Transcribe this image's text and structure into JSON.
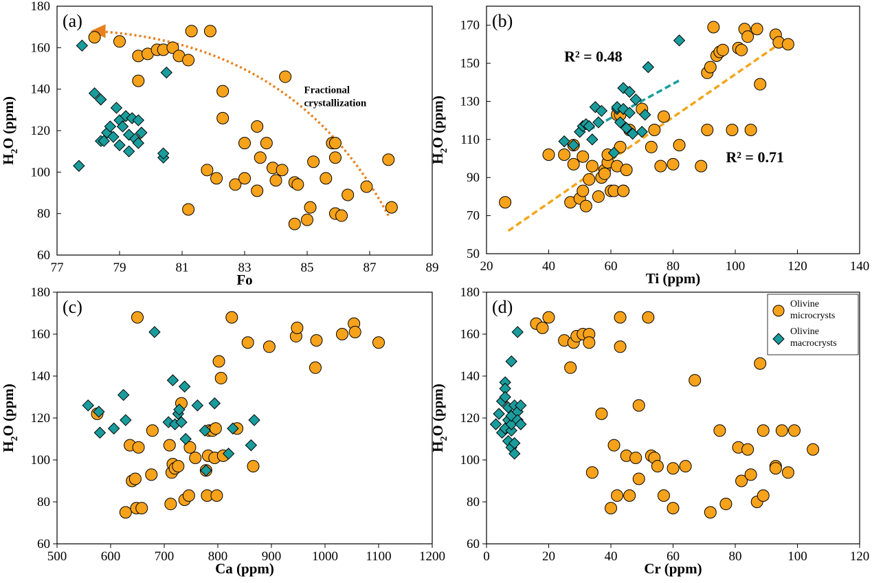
{
  "legend": {
    "micro": [
      "Olivine",
      "microcrysts"
    ],
    "macro": [
      "Olivine",
      "macrocrysts"
    ]
  },
  "colors": {
    "micro_fill": "#F7A21B",
    "macro_fill": "#1A9C9C",
    "arrow": "#E8801E",
    "trend_micro": "#F2A51A",
    "trend_macro": "#1A9C9C"
  },
  "chart_data": [
    {
      "type": "scatter",
      "panel": "(a)",
      "xlabel": "Fo",
      "ylabel_main": "H",
      "ylabel_sub": "2",
      "ylabel_rest": "O (ppm)",
      "xlim": [
        77,
        89
      ],
      "ylim": [
        60,
        180
      ],
      "xticks": [
        77,
        79,
        81,
        83,
        85,
        87,
        89
      ],
      "yticks": [
        60,
        80,
        100,
        120,
        140,
        160,
        180
      ],
      "annotation": [
        "Fractional",
        "crystallization"
      ],
      "arrow": {
        "from": [
          87.6,
          79
        ],
        "via": [
          83.8,
          142
        ],
        "to": [
          78.2,
          168
        ]
      },
      "series": [
        {
          "name": "Olivine microcrysts",
          "marker": "circle",
          "x": [
            78.2,
            79.0,
            79.6,
            79.6,
            79.9,
            80.2,
            80.4,
            80.7,
            80.9,
            81.2,
            81.3,
            81.9,
            82.3,
            82.3,
            82.1,
            81.2,
            81.8,
            82.7,
            83.0,
            83.0,
            83.4,
            83.5,
            83.4,
            83.7,
            83.9,
            84.0,
            84.2,
            84.3,
            84.6,
            84.7,
            84.6,
            85.0,
            85.1,
            85.2,
            85.6,
            85.8,
            85.9,
            85.9,
            85.9,
            86.1,
            86.3,
            86.9,
            87.6,
            87.7
          ],
          "y": [
            165,
            163,
            156,
            144,
            157,
            159,
            159,
            160,
            156,
            154,
            168,
            168,
            139,
            126,
            97,
            82,
            101,
            94,
            114,
            97,
            122,
            107,
            91,
            114,
            102,
            96,
            101,
            146,
            95,
            94,
            75,
            77,
            83,
            105,
            97,
            114,
            114,
            80,
            107,
            79,
            89,
            93,
            106,
            83
          ]
        },
        {
          "name": "Olivine macrocrysts",
          "marker": "diamond",
          "x": [
            77.7,
            77.8,
            78.2,
            78.4,
            78.4,
            78.5,
            78.6,
            78.7,
            78.8,
            78.9,
            79.0,
            79.0,
            79.1,
            79.2,
            79.3,
            79.3,
            79.4,
            79.5,
            79.6,
            79.6,
            79.7,
            80.4,
            80.4,
            80.5
          ],
          "y": [
            103,
            161,
            138,
            115,
            135,
            115,
            119,
            122,
            117,
            131,
            113,
            125,
            122,
            127,
            110,
            118,
            126,
            116,
            125,
            114,
            119,
            107,
            109,
            148
          ]
        }
      ]
    },
    {
      "type": "scatter",
      "panel": "(b)",
      "xlabel": "Ti (ppm)",
      "ylabel_main": "H",
      "ylabel_sub": "2",
      "ylabel_rest": "O (ppm)",
      "xlim": [
        20,
        140
      ],
      "ylim": [
        50,
        180
      ],
      "xticks": [
        20,
        40,
        60,
        80,
        100,
        120,
        140
      ],
      "yticks": [
        50,
        70,
        90,
        110,
        130,
        150,
        170
      ],
      "r2_macro": "R² = 0.48",
      "r2_micro": "R² = 0.71",
      "trendlines": [
        {
          "series": "Olivine microcrysts",
          "from": [
            27,
            62
          ],
          "to": [
            114,
            160
          ]
        },
        {
          "series": "Olivine macrocrysts",
          "from": [
            53,
            115
          ],
          "to": [
            82,
            141
          ]
        }
      ],
      "series": [
        {
          "name": "Olivine microcrysts",
          "marker": "circle",
          "x": [
            26,
            40,
            45,
            47,
            48,
            48,
            50,
            51,
            51,
            52,
            53,
            54,
            56,
            57,
            58,
            58,
            59,
            59,
            60,
            61,
            62,
            62,
            63,
            63,
            64,
            64,
            65,
            66,
            70,
            73,
            74,
            76,
            77,
            80,
            82,
            89,
            91,
            91,
            92,
            93,
            94,
            95,
            96,
            99,
            101,
            102,
            103,
            104,
            105,
            107,
            108,
            113,
            114,
            117
          ],
          "y": [
            77,
            102,
            102,
            77,
            107,
            97,
            79,
            83,
            101,
            75,
            89,
            96,
            80,
            90,
            94,
            92,
            98,
            102,
            83,
            83,
            96,
            123,
            106,
            123,
            83,
            83,
            94,
            115,
            126,
            106,
            115,
            96,
            122,
            97,
            107,
            96,
            115,
            145,
            148,
            169,
            154,
            156,
            157,
            115,
            158,
            157,
            168,
            164,
            115,
            168,
            139,
            165,
            161,
            160
          ]
        },
        {
          "name": "Olivine macrocrysts",
          "marker": "diamond",
          "x": [
            45,
            48,
            50,
            51,
            52,
            53,
            54,
            55,
            56,
            57,
            61,
            62,
            62,
            63,
            64,
            64,
            65,
            66,
            66,
            67,
            68,
            70,
            71,
            72,
            82
          ],
          "y": [
            109,
            107,
            114,
            117,
            118,
            117,
            110,
            127,
            119,
            125,
            103,
            126,
            127,
            119,
            126,
            137,
            116,
            135,
            124,
            113,
            131,
            114,
            123,
            148,
            162
          ]
        }
      ]
    },
    {
      "type": "scatter",
      "panel": "(c)",
      "xlabel": "Ca (ppm)",
      "ylabel_main": "H",
      "ylabel_sub": "2",
      "ylabel_rest": "O (ppm)",
      "xlim": [
        500,
        1200
      ],
      "ylim": [
        60,
        180
      ],
      "xticks": [
        500,
        600,
        700,
        800,
        900,
        1000,
        1100,
        1200
      ],
      "yticks": [
        60,
        80,
        100,
        120,
        140,
        160,
        180
      ],
      "series": [
        {
          "name": "Olivine microcrysts",
          "marker": "circle",
          "x": [
            575,
            628,
            636,
            640,
            646,
            648,
            650,
            652,
            658,
            676,
            678,
            710,
            712,
            714,
            716,
            720,
            726,
            732,
            738,
            746,
            748,
            758,
            778,
            780,
            782,
            784,
            790,
            794,
            796,
            798,
            802,
            806,
            810,
            826,
            836,
            856,
            866,
            896,
            946,
            948,
            982,
            984,
            1032,
            1054,
            1056,
            1100
          ],
          "y": [
            122,
            75,
            107,
            90,
            91,
            77,
            168,
            106,
            77,
            93,
            114,
            107,
            79,
            94,
            98,
            96,
            97,
            127,
            81,
            83,
            106,
            101,
            95,
            83,
            102,
            114,
            114,
            101,
            115,
            83,
            147,
            139,
            102,
            168,
            115,
            156,
            97,
            154,
            159,
            163,
            144,
            157,
            160,
            165,
            161,
            156
          ]
        },
        {
          "name": "Olivine macrocrysts",
          "marker": "diamond",
          "x": [
            558,
            578,
            580,
            606,
            624,
            628,
            682,
            708,
            716,
            720,
            726,
            728,
            732,
            738,
            740,
            762,
            776,
            778,
            794,
            820,
            828,
            862,
            868
          ],
          "y": [
            126,
            123,
            113,
            115,
            131,
            119,
            161,
            118,
            138,
            117,
            122,
            124,
            118,
            135,
            110,
            126,
            114,
            95,
            127,
            103,
            115,
            107,
            119
          ]
        }
      ]
    },
    {
      "type": "scatter",
      "panel": "(d)",
      "xlabel": "Cr (ppm)",
      "ylabel_main": "H",
      "ylabel_sub": "2",
      "ylabel_rest": "O (ppm)",
      "xlim": [
        0,
        120
      ],
      "ylim": [
        60,
        180
      ],
      "xticks": [
        0,
        20,
        40,
        60,
        80,
        100,
        120
      ],
      "yticks": [
        60,
        80,
        100,
        120,
        140,
        160,
        180
      ],
      "series": [
        {
          "name": "Olivine microcrysts",
          "marker": "circle",
          "x": [
            16,
            18,
            20,
            25,
            27,
            28,
            29,
            31,
            33,
            33,
            34,
            37,
            40,
            41,
            42,
            43,
            43,
            45,
            46,
            48,
            49,
            49,
            52,
            53,
            54,
            55,
            57,
            60,
            60,
            64,
            67,
            72,
            75,
            77,
            81,
            82,
            84,
            85,
            87,
            88,
            89,
            89,
            93,
            93,
            95,
            97,
            99,
            105
          ],
          "y": [
            165,
            163,
            168,
            157,
            144,
            156,
            159,
            160,
            160,
            156,
            94,
            122,
            77,
            107,
            83,
            154,
            168,
            102,
            83,
            101,
            91,
            126,
            168,
            102,
            101,
            97,
            83,
            77,
            96,
            97,
            138,
            75,
            114,
            79,
            106,
            90,
            105,
            93,
            80,
            146,
            114,
            83,
            97,
            96,
            114,
            94,
            114,
            105
          ]
        },
        {
          "name": "Olivine macrocrysts",
          "marker": "diamond",
          "x": [
            3,
            4,
            5,
            5,
            6,
            6,
            6,
            6,
            7,
            7,
            7,
            8,
            8,
            8,
            8,
            8,
            9,
            9,
            9,
            10,
            10,
            10,
            11,
            11
          ],
          "y": [
            117,
            122,
            113,
            128,
            115,
            137,
            134,
            130,
            109,
            125,
            119,
            106,
            114,
            117,
            121,
            147,
            126,
            108,
            103,
            161,
            123,
            119,
            126,
            117
          ]
        }
      ]
    }
  ]
}
